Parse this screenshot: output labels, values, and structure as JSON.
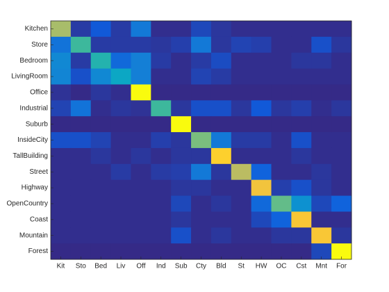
{
  "chart_data": {
    "type": "heatmap",
    "colormap": "parula",
    "x_categories": [
      "Kit",
      "Sto",
      "Bed",
      "Liv",
      "Off",
      "Ind",
      "Sub",
      "Cty",
      "Bld",
      "St",
      "HW",
      "OC",
      "Cst",
      "Mnt",
      "For"
    ],
    "y_categories": [
      "Kitchen",
      "Store",
      "Bedroom",
      "LivingRoom",
      "Office",
      "Industrial",
      "Suburb",
      "InsideCity",
      "TallBuilding",
      "Street",
      "Highway",
      "OpenCountry",
      "Coast",
      "Mountain",
      "Forest"
    ],
    "values": [
      [
        0.65,
        0.05,
        0.12,
        0.05,
        0.22,
        0.02,
        0.02,
        0.08,
        0.04,
        0.02,
        0.02,
        0.02,
        0.02,
        0.02,
        0.02
      ],
      [
        0.2,
        0.5,
        0.05,
        0.05,
        0.05,
        0.04,
        0.06,
        0.22,
        0.04,
        0.07,
        0.06,
        0.02,
        0.02,
        0.1,
        0.04
      ],
      [
        0.27,
        0.05,
        0.45,
        0.17,
        0.24,
        0.05,
        0.02,
        0.05,
        0.09,
        0.02,
        0.02,
        0.02,
        0.04,
        0.04,
        0.02
      ],
      [
        0.26,
        0.1,
        0.27,
        0.38,
        0.24,
        0.02,
        0.02,
        0.07,
        0.05,
        0.02,
        0.02,
        0.02,
        0.02,
        0.02,
        0.02
      ],
      [
        0.03,
        0.01,
        0.04,
        0.02,
        0.95,
        0.01,
        0.01,
        0.01,
        0.01,
        0.01,
        0.01,
        0.01,
        0.01,
        0.01,
        0.01
      ],
      [
        0.07,
        0.2,
        0.02,
        0.04,
        0.03,
        0.5,
        0.04,
        0.1,
        0.1,
        0.04,
        0.12,
        0.04,
        0.06,
        0.02,
        0.04
      ],
      [
        0.01,
        0.01,
        0.01,
        0.01,
        0.01,
        0.01,
        0.95,
        0.01,
        0.01,
        0.01,
        0.01,
        0.01,
        0.01,
        0.01,
        0.01
      ],
      [
        0.1,
        0.1,
        0.07,
        0.02,
        0.02,
        0.06,
        0.04,
        0.58,
        0.22,
        0.05,
        0.05,
        0.02,
        0.1,
        0.02,
        0.02
      ],
      [
        0.02,
        0.02,
        0.04,
        0.02,
        0.04,
        0.02,
        0.04,
        0.04,
        0.85,
        0.02,
        0.02,
        0.02,
        0.04,
        0.02,
        0.02
      ],
      [
        0.02,
        0.02,
        0.02,
        0.05,
        0.02,
        0.05,
        0.06,
        0.22,
        0.04,
        0.68,
        0.15,
        0.02,
        0.02,
        0.04,
        0.02
      ],
      [
        0.02,
        0.02,
        0.02,
        0.02,
        0.02,
        0.02,
        0.04,
        0.04,
        0.02,
        0.02,
        0.8,
        0.06,
        0.1,
        0.04,
        0.02
      ],
      [
        0.02,
        0.02,
        0.02,
        0.02,
        0.02,
        0.02,
        0.08,
        0.02,
        0.04,
        0.02,
        0.17,
        0.55,
        0.3,
        0.08,
        0.15
      ],
      [
        0.02,
        0.02,
        0.02,
        0.02,
        0.02,
        0.02,
        0.04,
        0.02,
        0.02,
        0.02,
        0.08,
        0.15,
        0.82,
        0.02,
        0.02
      ],
      [
        0.02,
        0.02,
        0.02,
        0.02,
        0.02,
        0.02,
        0.1,
        0.02,
        0.04,
        0.02,
        0.02,
        0.04,
        0.04,
        0.82,
        0.04
      ],
      [
        0.01,
        0.01,
        0.01,
        0.01,
        0.01,
        0.01,
        0.01,
        0.01,
        0.01,
        0.01,
        0.01,
        0.01,
        0.01,
        0.08,
        0.95
      ]
    ]
  }
}
